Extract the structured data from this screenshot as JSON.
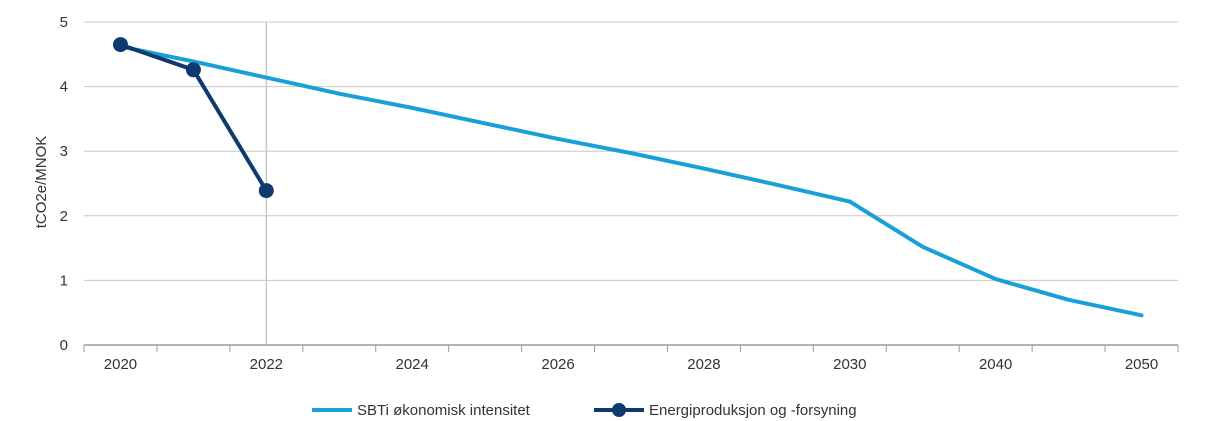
{
  "chart_data": {
    "type": "line",
    "title": "",
    "xlabel": "",
    "ylabel": "tCO2e/MNOK",
    "categories": [
      "2020",
      "2021",
      "2022",
      "2023",
      "2024",
      "2025",
      "2026",
      "2027",
      "2028",
      "2029",
      "2030",
      "2035",
      "2040",
      "2045",
      "2050"
    ],
    "x_tick_labels": [
      "2020",
      "2022",
      "2024",
      "2026",
      "2028",
      "2030",
      "2040",
      "2050"
    ],
    "ylim": [
      0,
      5
    ],
    "y_ticks": [
      "0",
      "1",
      "2",
      "3",
      "4",
      "5"
    ],
    "grid": "horizontal",
    "legend_position": "bottom",
    "reference_line_category": "2022",
    "series": [
      {
        "name": "SBTi økonomisk intensitet",
        "color": "#1aa0d8",
        "marker": "none",
        "values": [
          4.62,
          4.39,
          4.14,
          3.89,
          3.67,
          3.43,
          3.19,
          2.97,
          2.73,
          2.48,
          2.22,
          1.52,
          1.02,
          0.7,
          0.46
        ]
      },
      {
        "name": "Energiproduksjon og -forsyning",
        "color": "#0e3a6e",
        "marker": "circle",
        "values": [
          4.65,
          4.26,
          2.39,
          null,
          null,
          null,
          null,
          null,
          null,
          null,
          null,
          null,
          null,
          null,
          null
        ]
      }
    ]
  }
}
